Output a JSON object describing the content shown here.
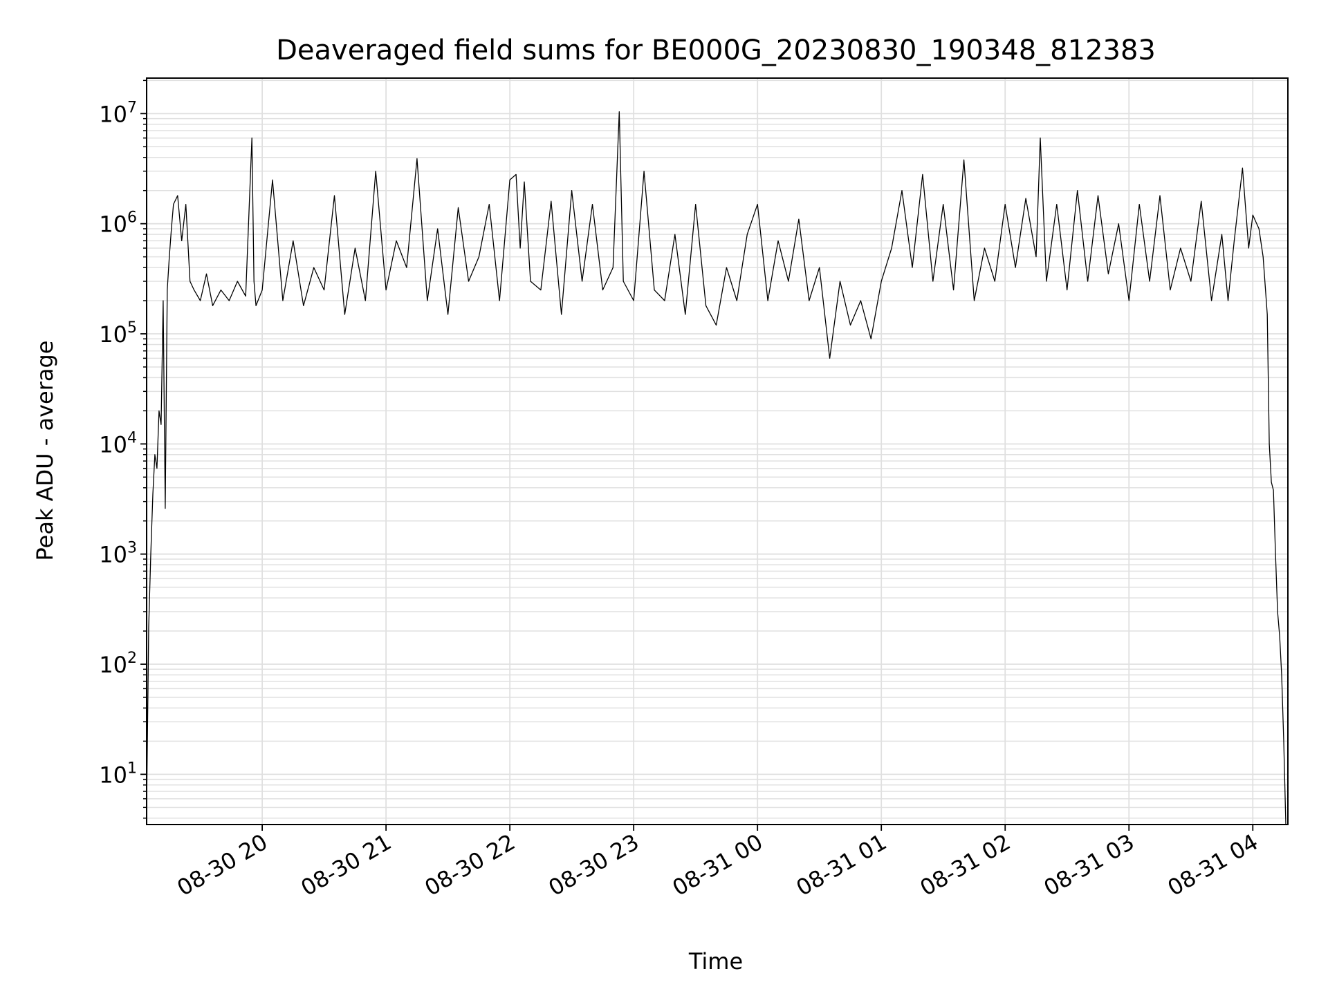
{
  "chart_data": {
    "type": "line",
    "title": "Deaveraged field sums for BE000G_20230830_190348_812383",
    "xlabel": "Time",
    "ylabel": "Peak ADU - average",
    "yscale": "log",
    "xlim": [
      "2023-08-30 19:04",
      "2023-08-31 04:17"
    ],
    "ylim": [
      3.5,
      21000000.0
    ],
    "grid": true,
    "line_color": "#000000",
    "grid_color": "#e0e0e0",
    "x_ticks": [
      {
        "value": "2023-08-30 20:00",
        "label": "08-30 20"
      },
      {
        "value": "2023-08-30 21:00",
        "label": "08-30 21"
      },
      {
        "value": "2023-08-30 22:00",
        "label": "08-30 22"
      },
      {
        "value": "2023-08-30 23:00",
        "label": "08-30 23"
      },
      {
        "value": "2023-08-31 00:00",
        "label": "08-31 00"
      },
      {
        "value": "2023-08-31 01:00",
        "label": "08-31 01"
      },
      {
        "value": "2023-08-31 02:00",
        "label": "08-31 02"
      },
      {
        "value": "2023-08-31 03:00",
        "label": "08-31 03"
      },
      {
        "value": "2023-08-31 04:00",
        "label": "08-31 04"
      }
    ],
    "y_ticks": [
      {
        "value": 10,
        "label": "10",
        "exp": "1"
      },
      {
        "value": 100,
        "label": "10",
        "exp": "2"
      },
      {
        "value": 1000,
        "label": "10",
        "exp": "3"
      },
      {
        "value": 10000,
        "label": "10",
        "exp": "4"
      },
      {
        "value": 100000,
        "label": "10",
        "exp": "5"
      },
      {
        "value": 1000000,
        "label": "10",
        "exp": "6"
      },
      {
        "value": 10000000,
        "label": "10",
        "exp": "7"
      }
    ],
    "series": [
      {
        "x": [
          "2023-08-30 19:04",
          "2023-08-30 19:05",
          "2023-08-30 19:06",
          "2023-08-30 19:07",
          "2023-08-30 19:08",
          "2023-08-30 19:09",
          "2023-08-30 19:10",
          "2023-08-30 19:11",
          "2023-08-30 19:12",
          "2023-08-30 19:13",
          "2023-08-30 19:14",
          "2023-08-30 19:15",
          "2023-08-30 19:16",
          "2023-08-30 19:17",
          "2023-08-30 19:19",
          "2023-08-30 19:21",
          "2023-08-30 19:23",
          "2023-08-30 19:25",
          "2023-08-30 19:27",
          "2023-08-30 19:30",
          "2023-08-30 19:33",
          "2023-08-30 19:36",
          "2023-08-30 19:40",
          "2023-08-30 19:44",
          "2023-08-30 19:48",
          "2023-08-30 19:52",
          "2023-08-30 19:55",
          "2023-08-30 19:56",
          "2023-08-30 19:57",
          "2023-08-30 20:00",
          "2023-08-30 20:05",
          "2023-08-30 20:10",
          "2023-08-30 20:15",
          "2023-08-30 20:20",
          "2023-08-30 20:25",
          "2023-08-30 20:30",
          "2023-08-30 20:35",
          "2023-08-30 20:40",
          "2023-08-30 20:45",
          "2023-08-30 20:50",
          "2023-08-30 20:55",
          "2023-08-30 21:00",
          "2023-08-30 21:05",
          "2023-08-30 21:10",
          "2023-08-30 21:15",
          "2023-08-30 21:20",
          "2023-08-30 21:25",
          "2023-08-30 21:30",
          "2023-08-30 21:35",
          "2023-08-30 21:40",
          "2023-08-30 21:45",
          "2023-08-30 21:50",
          "2023-08-30 21:55",
          "2023-08-30 22:00",
          "2023-08-30 22:03",
          "2023-08-30 22:05",
          "2023-08-30 22:07",
          "2023-08-30 22:10",
          "2023-08-30 22:15",
          "2023-08-30 22:20",
          "2023-08-30 22:25",
          "2023-08-30 22:30",
          "2023-08-30 22:35",
          "2023-08-30 22:40",
          "2023-08-30 22:45",
          "2023-08-30 22:50",
          "2023-08-30 22:53",
          "2023-08-30 22:55",
          "2023-08-30 23:00",
          "2023-08-30 23:05",
          "2023-08-30 23:10",
          "2023-08-30 23:15",
          "2023-08-30 23:20",
          "2023-08-30 23:25",
          "2023-08-30 23:30",
          "2023-08-30 23:35",
          "2023-08-30 23:40",
          "2023-08-30 23:45",
          "2023-08-30 23:50",
          "2023-08-30 23:55",
          "2023-08-31 00:00",
          "2023-08-31 00:05",
          "2023-08-31 00:10",
          "2023-08-31 00:15",
          "2023-08-31 00:20",
          "2023-08-31 00:25",
          "2023-08-31 00:30",
          "2023-08-31 00:35",
          "2023-08-31 00:40",
          "2023-08-31 00:45",
          "2023-08-31 00:50",
          "2023-08-31 00:55",
          "2023-08-31 01:00",
          "2023-08-31 01:05",
          "2023-08-31 01:10",
          "2023-08-31 01:15",
          "2023-08-31 01:20",
          "2023-08-31 01:25",
          "2023-08-31 01:30",
          "2023-08-31 01:35",
          "2023-08-31 01:40",
          "2023-08-31 01:45",
          "2023-08-31 01:50",
          "2023-08-31 01:55",
          "2023-08-31 02:00",
          "2023-08-31 02:05",
          "2023-08-31 02:10",
          "2023-08-31 02:15",
          "2023-08-31 02:17",
          "2023-08-31 02:20",
          "2023-08-31 02:25",
          "2023-08-31 02:30",
          "2023-08-31 02:35",
          "2023-08-31 02:40",
          "2023-08-31 02:45",
          "2023-08-31 02:50",
          "2023-08-31 02:55",
          "2023-08-31 03:00",
          "2023-08-31 03:05",
          "2023-08-31 03:10",
          "2023-08-31 03:15",
          "2023-08-31 03:20",
          "2023-08-31 03:25",
          "2023-08-31 03:30",
          "2023-08-31 03:35",
          "2023-08-31 03:40",
          "2023-08-31 03:45",
          "2023-08-31 03:48",
          "2023-08-31 03:51",
          "2023-08-31 03:55",
          "2023-08-31 03:58",
          "2023-08-31 04:00",
          "2023-08-31 04:03",
          "2023-08-31 04:05",
          "2023-08-31 04:07",
          "2023-08-31 04:08",
          "2023-08-31 04:09",
          "2023-08-31 04:10",
          "2023-08-31 04:11",
          "2023-08-31 04:12",
          "2023-08-31 04:13",
          "2023-08-31 04:14",
          "2023-08-31 04:15",
          "2023-08-31 04:16"
        ],
        "y": [
          5,
          220,
          1000,
          3500,
          8000,
          6000,
          20000,
          15000,
          200000,
          2600,
          250000,
          500000,
          900000,
          1500000,
          1800000,
          700000,
          1500000,
          300000,
          250000,
          200000,
          350000,
          180000,
          250000,
          200000,
          300000,
          220000,
          6000000,
          300000,
          180000,
          250000,
          2500000,
          200000,
          700000,
          180000,
          400000,
          250000,
          1800000,
          150000,
          600000,
          200000,
          3000000,
          250000,
          700000,
          400000,
          3900000,
          200000,
          900000,
          150000,
          1400000,
          300000,
          500000,
          1500000,
          200000,
          2500000,
          2800000,
          600000,
          2400000,
          300000,
          250000,
          1600000,
          150000,
          2000000,
          300000,
          1500000,
          250000,
          400000,
          10400000,
          300000,
          200000,
          3000000,
          250000,
          200000,
          800000,
          150000,
          1500000,
          180000,
          120000,
          400000,
          200000,
          800000,
          1500000,
          200000,
          700000,
          300000,
          1100000,
          200000,
          400000,
          60000,
          300000,
          120000,
          200000,
          90000,
          300000,
          600000,
          2000000,
          400000,
          2800000,
          300000,
          1500000,
          250000,
          3800000,
          200000,
          600000,
          300000,
          1500000,
          400000,
          1700000,
          500000,
          6000000,
          300000,
          1500000,
          250000,
          2000000,
          300000,
          1800000,
          350000,
          1000000,
          200000,
          1500000,
          300000,
          1800000,
          250000,
          600000,
          300000,
          1600000,
          200000,
          800000,
          200000,
          700000,
          3200000,
          600000,
          1200000,
          900000,
          500000,
          150000,
          10000,
          4500,
          3800,
          1000,
          300,
          180,
          80,
          20,
          3.5
        ]
      }
    ]
  }
}
